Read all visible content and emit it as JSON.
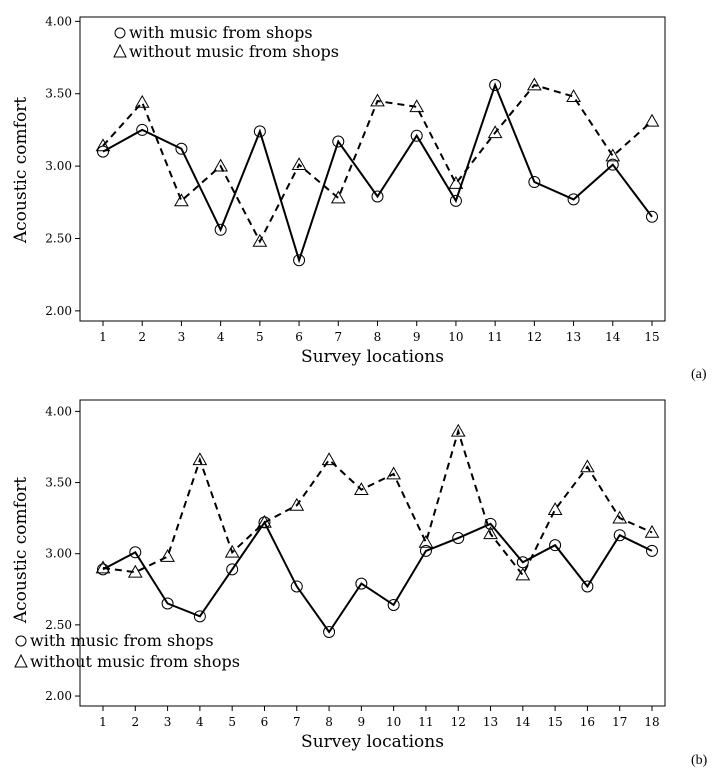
{
  "chart_data": [
    {
      "type": "line",
      "panel_label": "(a)",
      "xlabel": "Survey locations",
      "ylabel": "Acoustic comfort",
      "categories": [
        "1",
        "2",
        "3",
        "4",
        "5",
        "6",
        "7",
        "8",
        "9",
        "10",
        "11",
        "12",
        "13",
        "14",
        "15"
      ],
      "yticks": [
        "2.00",
        "2.50",
        "3.00",
        "3.50",
        "4.00"
      ],
      "ylim": [
        1.93,
        4.03
      ],
      "grid": false,
      "legend_position": "top-left",
      "series": [
        {
          "name": "with music from shops",
          "marker": "circle",
          "line": "solid",
          "values": [
            3.1,
            3.25,
            3.12,
            2.56,
            3.24,
            2.35,
            3.17,
            2.79,
            3.21,
            2.76,
            3.56,
            2.89,
            2.77,
            3.01,
            2.65
          ]
        },
        {
          "name": "without music from shops",
          "marker": "triangle",
          "line": "dashed",
          "values": [
            3.14,
            3.44,
            2.76,
            3.0,
            2.48,
            3.01,
            2.78,
            3.45,
            3.41,
            2.88,
            3.23,
            3.56,
            3.48,
            3.07,
            3.31
          ]
        }
      ]
    },
    {
      "type": "line",
      "panel_label": "(b)",
      "xlabel": "Survey locations",
      "ylabel": "Acoustic comfort",
      "categories": [
        "1",
        "2",
        "3",
        "4",
        "5",
        "6",
        "7",
        "8",
        "9",
        "10",
        "11",
        "12",
        "13",
        "14",
        "15",
        "16",
        "17",
        "18"
      ],
      "yticks": [
        "2.00",
        "2.50",
        "3.00",
        "3.50",
        "4.00"
      ],
      "ylim": [
        1.93,
        4.08
      ],
      "grid": false,
      "legend_position": "bottom-left",
      "series": [
        {
          "name": "with music from shops",
          "marker": "circle",
          "line": "solid",
          "values": [
            2.89,
            3.01,
            2.65,
            2.56,
            2.89,
            3.22,
            2.77,
            2.45,
            2.79,
            2.64,
            3.02,
            3.11,
            3.21,
            2.94,
            3.06,
            2.77,
            3.13,
            3.02
          ]
        },
        {
          "name": "without music from shops",
          "marker": "triangle",
          "line": "dashed",
          "values": [
            2.9,
            2.87,
            2.98,
            3.66,
            3.01,
            3.22,
            3.34,
            3.66,
            3.45,
            3.56,
            3.08,
            3.86,
            3.14,
            2.85,
            3.31,
            3.61,
            3.25,
            3.15
          ]
        }
      ]
    }
  ]
}
